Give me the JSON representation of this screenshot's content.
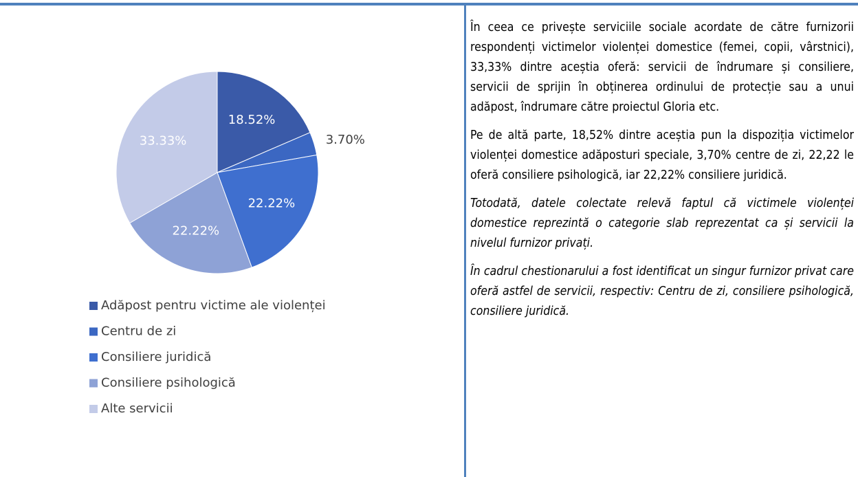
{
  "chart_data": {
    "type": "pie",
    "categories": [
      "Adăpost pentru victime ale violenței",
      "Centru de zi",
      "Consiliere juridică",
      "Consiliere psihologică",
      "Alte servicii"
    ],
    "values": [
      18.52,
      3.7,
      22.22,
      22.22,
      33.33
    ],
    "value_labels": [
      "18.52%",
      "3.70%",
      "22.22%",
      "22.22%",
      "33.33%"
    ],
    "colors": [
      "#3a5aa8",
      "#3b67c2",
      "#3f6fcf",
      "#8ea2d6",
      "#c3cbe8"
    ],
    "legend": "bottom"
  },
  "text": {
    "paragraphs": [
      "În ceea ce privește serviciile sociale acordate de către furnizorii respondenți victimelor violenței domestice (femei, copii, vârstnici), 33,33% dintre aceștia oferă: servicii de îndrumare și consiliere, servicii de sprijin în obținerea ordinului de protecție sau a unui adăpost, îndrumare către proiectul Gloria etc.",
      "Pe de altă parte, 18,52% dintre aceștia pun la dispoziția victimelor violenței domestice adăposturi speciale, 3,70% centre de zi, 22,22 le oferă consiliere psihologică, iar 22,22% consiliere juridică.",
      "Totodată, datele colectate relevă faptul că victimele violenței domestice reprezintă o categorie slab reprezentat ca și servicii la nivelul furnizor privați.",
      "În cadrul chestionarului a fost identificat un singur furnizor privat care oferă astfel de servicii, respectiv: Centru de zi, consiliere psihologică, consiliere juridică."
    ],
    "italic": [
      false,
      false,
      true,
      true
    ]
  }
}
